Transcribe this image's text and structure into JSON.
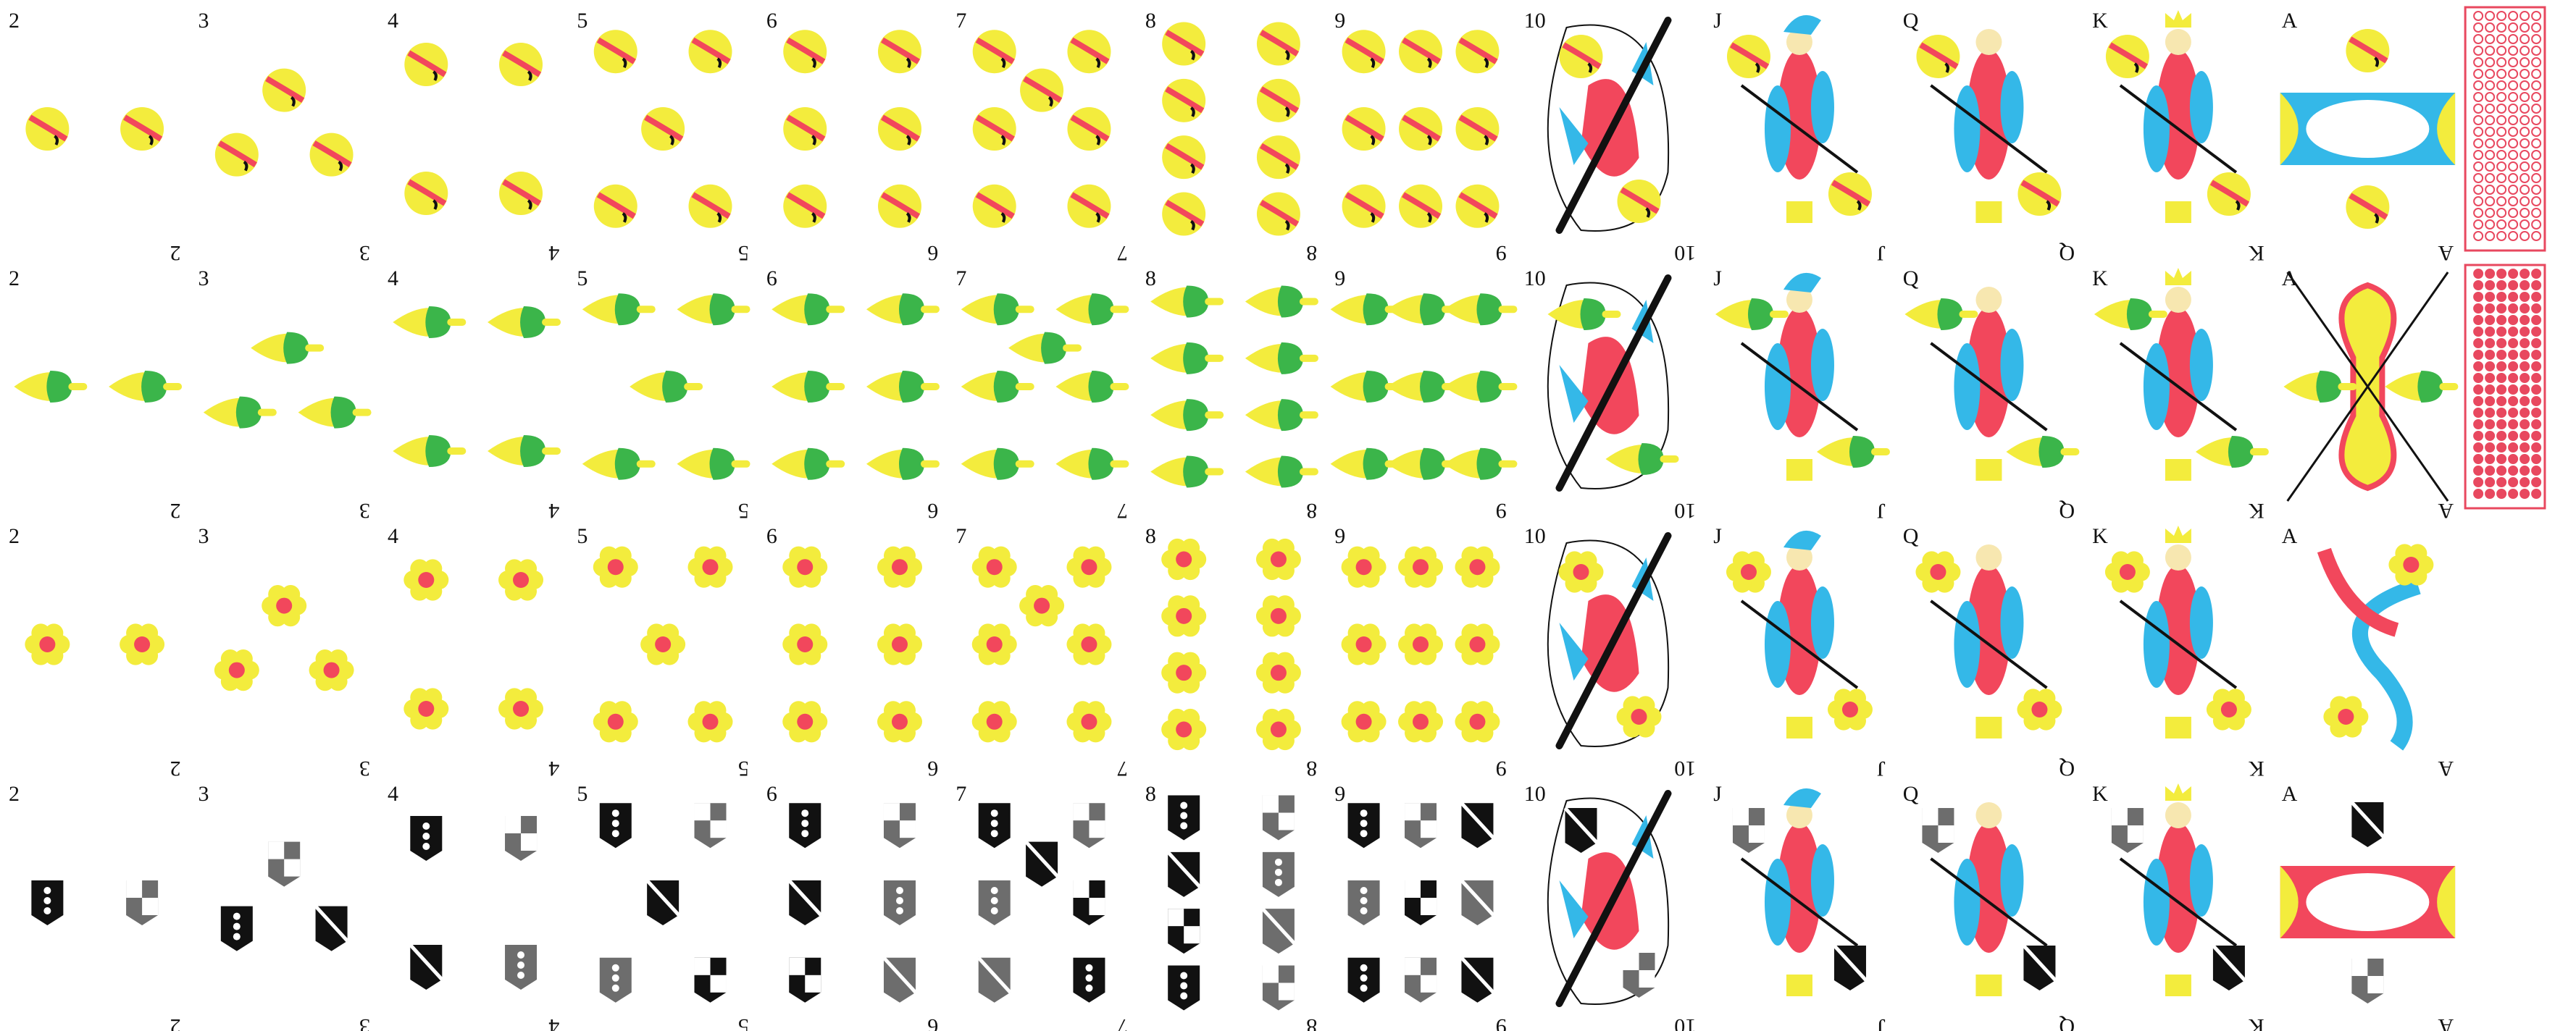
{
  "sheet": {
    "background": "#ffffff",
    "colors": {
      "yellow": "#f3ec3d",
      "red": "#f2475c",
      "cyan": "#34b8e8",
      "green": "#3bb54a",
      "black": "#111111",
      "gray": "#6d6d6d",
      "back_red": "#e8485f"
    },
    "ranks": [
      "2",
      "3",
      "4",
      "5",
      "6",
      "7",
      "8",
      "9",
      "10",
      "J",
      "Q",
      "K",
      "A"
    ],
    "suits": [
      {
        "name": "bells",
        "icon": "bell-icon",
        "row": 0
      },
      {
        "name": "acorns",
        "icon": "acorn-icon",
        "row": 1
      },
      {
        "name": "flowers",
        "icon": "flower-icon",
        "row": 2
      },
      {
        "name": "shields",
        "icon": "shield-icon",
        "row": 3
      }
    ],
    "card_backs": [
      {
        "pattern": "hexagon-net",
        "color": "#e8485f"
      },
      {
        "pattern": "hexagon-dots",
        "color": "#e8485f"
      }
    ],
    "figure_cards": [
      {
        "rank": "10",
        "figure": "banner-bearer",
        "icon": "flag-icon"
      },
      {
        "rank": "J",
        "figure": "jack",
        "icon": "jester-icon"
      },
      {
        "rank": "Q",
        "figure": "queen",
        "icon": "queen-icon"
      },
      {
        "rank": "K",
        "figure": "king",
        "icon": "crown-icon"
      }
    ]
  }
}
